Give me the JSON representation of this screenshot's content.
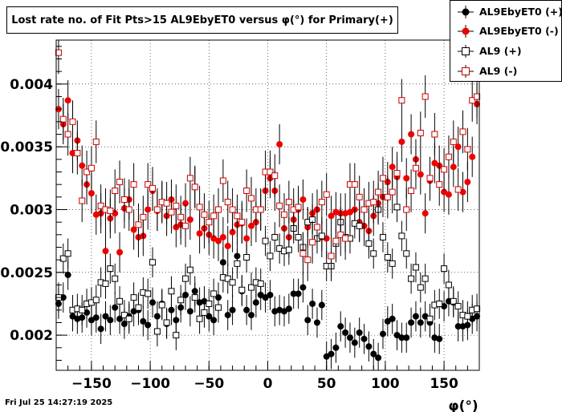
{
  "chart_data": {
    "type": "scatter",
    "title": "Lost rate no. of Fit Pts>15 AL9EbyET0 versus φ(°) for Primary(+)",
    "xlabel": "φ(°)",
    "ylabel": "",
    "xlim": [
      -180,
      180
    ],
    "ylim": [
      0.00172,
      0.00435
    ],
    "grid": true,
    "legend_position": "top-right",
    "x_ticks": [
      -150,
      -100,
      -50,
      0,
      50,
      100,
      150
    ],
    "x_tick_labels": [
      "−150",
      "−100",
      "−50",
      "0",
      "50",
      "100",
      "150"
    ],
    "y_ticks": [
      0.002,
      0.0025,
      0.003,
      0.0035,
      0.004
    ],
    "y_tick_labels": [
      "0.002",
      "0.0025",
      "0.003",
      "0.0035",
      "0.004"
    ],
    "x": [
      -178,
      -174,
      -170,
      -166,
      -162,
      -158,
      -154,
      -150,
      -146,
      -142,
      -138,
      -134,
      -130,
      -126,
      -122,
      -118,
      -114,
      -110,
      -106,
      -102,
      -98,
      -94,
      -90,
      -86,
      -82,
      -78,
      -74,
      -70,
      -66,
      -62,
      -58,
      -54,
      -50,
      -46,
      -42,
      -38,
      -34,
      -30,
      -26,
      -22,
      -18,
      -14,
      -10,
      -6,
      -2,
      2,
      6,
      10,
      14,
      18,
      22,
      26,
      30,
      34,
      38,
      42,
      46,
      50,
      54,
      58,
      62,
      66,
      70,
      74,
      78,
      82,
      86,
      90,
      94,
      98,
      102,
      106,
      110,
      114,
      118,
      122,
      126,
      130,
      134,
      138,
      142,
      146,
      150,
      154,
      158,
      162,
      166,
      170,
      174,
      178
    ],
    "series": [
      {
        "name": "AL9EbyET0 (+)",
        "marker": "filled-circle",
        "color": "#000000",
        "values": [
          0.00225,
          0.0023,
          0.00248,
          0.00215,
          0.00213,
          0.00214,
          0.00218,
          0.00212,
          0.00214,
          0.00205,
          0.00215,
          0.00212,
          0.00222,
          0.00213,
          0.00209,
          0.00215,
          0.00219,
          0.0022,
          0.00211,
          0.00208,
          0.00226,
          0.00215,
          0.00225,
          0.00209,
          0.0022,
          0.00212,
          0.00222,
          0.00232,
          0.00219,
          0.00235,
          0.00226,
          0.00227,
          0.00215,
          0.00212,
          0.0023,
          0.00258,
          0.00216,
          0.0022,
          0.00263,
          0.00235,
          0.0022,
          0.00216,
          0.00226,
          0.00232,
          0.0023,
          0.00232,
          0.00219,
          0.0022,
          0.00219,
          0.00221,
          0.00233,
          0.00233,
          0.00238,
          0.00212,
          0.00225,
          0.0021,
          0.00224,
          0.00183,
          0.00185,
          0.0019,
          0.00207,
          0.00202,
          0.00198,
          0.00194,
          0.00202,
          0.00197,
          0.00191,
          0.00185,
          0.00182,
          0.00201,
          0.00211,
          0.00213,
          0.002,
          0.00198,
          0.00198,
          0.0021,
          0.00215,
          0.0021,
          0.00215,
          0.0021,
          0.00198,
          0.00197,
          0.00223,
          0.00227,
          0.00226,
          0.00207,
          0.00207,
          0.00208,
          0.00213,
          0.00215
        ],
        "errors": [
          0.00012,
          0.00012,
          0.00012,
          0.00012,
          0.00012,
          0.00012,
          0.00012,
          0.00012,
          0.00012,
          0.00012,
          0.00012,
          0.00012,
          0.00012,
          0.00012,
          0.00012,
          0.00012,
          0.00012,
          0.00012,
          0.00012,
          0.00012,
          0.00012,
          0.00012,
          0.00012,
          0.00012,
          0.00012,
          0.00012,
          0.00012,
          0.00012,
          0.00012,
          0.00012,
          0.00012,
          0.00012,
          0.00012,
          0.00012,
          0.00012,
          0.00012,
          0.00012,
          0.00012,
          0.00012,
          0.00012,
          0.00012,
          0.00012,
          0.00012,
          0.00012,
          0.00012,
          0.00012,
          0.00012,
          0.00012,
          0.00012,
          0.00012,
          0.00012,
          0.00012,
          0.00012,
          0.00012,
          0.00012,
          0.00012,
          0.00012,
          0.00012,
          0.00012,
          0.00012,
          0.00012,
          0.00012,
          0.00012,
          0.00012,
          0.00012,
          0.00012,
          0.00012,
          0.00012,
          0.00012,
          0.00012,
          0.00012,
          0.00012,
          0.00012,
          0.00012,
          0.00012,
          0.00012,
          0.00012,
          0.00012,
          0.00012,
          0.00012,
          0.00012,
          0.00012,
          0.00012,
          0.00012,
          0.00012,
          0.00012,
          0.00012,
          0.00012,
          0.00012,
          0.00012
        ]
      },
      {
        "name": "AL9EbyET0 (-)",
        "marker": "filled-circle",
        "color": "#ee0000",
        "values": [
          0.0038,
          0.00368,
          0.00387,
          0.00345,
          0.00355,
          0.00335,
          0.0032,
          0.00313,
          0.00296,
          0.00297,
          0.00267,
          0.00293,
          0.00297,
          0.00266,
          0.00301,
          0.00308,
          0.00284,
          0.00278,
          0.00279,
          0.003,
          0.00315,
          0.00299,
          0.00306,
          0.00295,
          0.00308,
          0.00286,
          0.00288,
          0.00305,
          0.00292,
          0.00318,
          0.00281,
          0.00285,
          0.0028,
          0.00277,
          0.00275,
          0.00278,
          0.00271,
          0.00282,
          0.00288,
          0.00289,
          0.00277,
          0.00287,
          0.0029,
          0.003,
          0.00315,
          0.00325,
          0.00315,
          0.00352,
          0.00285,
          0.00278,
          0.00292,
          0.003,
          0.00308,
          0.00286,
          0.00297,
          0.003,
          0.00278,
          0.00277,
          0.00295,
          0.00298,
          0.00297,
          0.00297,
          0.00298,
          0.003,
          0.0029,
          0.00287,
          0.00283,
          0.00295,
          0.00305,
          0.0031,
          0.00322,
          0.00334,
          0.00326,
          0.00354,
          0.00325,
          0.0036,
          0.0034,
          0.00328,
          0.00297,
          0.00323,
          0.00337,
          0.00335,
          0.00314,
          0.00312,
          0.00334,
          0.0035,
          0.00314,
          0.00322,
          0.00342,
          0.00384
        ],
        "errors": [
          0.00016,
          0.00016,
          0.00016,
          0.00016,
          0.00016,
          0.00016,
          0.00016,
          0.00016,
          0.00016,
          0.00016,
          0.00016,
          0.00016,
          0.00016,
          0.00016,
          0.00016,
          0.00016,
          0.00016,
          0.00016,
          0.00016,
          0.00016,
          0.00016,
          0.00016,
          0.00016,
          0.00016,
          0.00016,
          0.00016,
          0.00016,
          0.00016,
          0.00016,
          0.00016,
          0.00016,
          0.00016,
          0.00016,
          0.00016,
          0.00016,
          0.00016,
          0.00016,
          0.00016,
          0.00016,
          0.00016,
          0.00016,
          0.00016,
          0.00016,
          0.00016,
          0.00016,
          0.00016,
          0.00016,
          0.00016,
          0.00016,
          0.00016,
          0.00016,
          0.00016,
          0.00016,
          0.00016,
          0.00016,
          0.00016,
          0.00016,
          0.00016,
          0.00016,
          0.00016,
          0.00016,
          0.00016,
          0.00016,
          0.00016,
          0.00016,
          0.00016,
          0.00016,
          0.00016,
          0.00016,
          0.00016,
          0.00016,
          0.00016,
          0.00016,
          0.00016,
          0.00016,
          0.00016,
          0.00016,
          0.00016,
          0.00016,
          0.00016,
          0.00016,
          0.00016,
          0.00016,
          0.00016,
          0.00016,
          0.00016,
          0.00016,
          0.00016,
          0.00016,
          0.00016
        ]
      },
      {
        "name": "AL9 (+)",
        "marker": "open-square",
        "color": "#000000",
        "values": [
          0.0023,
          0.00261,
          0.00265,
          0.0022,
          0.00221,
          0.0022,
          0.00225,
          0.00226,
          0.00228,
          0.00242,
          0.00241,
          0.00253,
          0.00245,
          0.00227,
          0.00216,
          0.00213,
          0.0023,
          0.00222,
          0.00234,
          0.00233,
          0.00258,
          0.00203,
          0.00224,
          0.0021,
          0.00235,
          0.002,
          0.00228,
          0.00245,
          0.00252,
          0.0023,
          0.00213,
          0.00218,
          0.00225,
          0.00233,
          0.00222,
          0.00246,
          0.00245,
          0.00242,
          0.00257,
          0.00236,
          0.00262,
          0.00238,
          0.00242,
          0.00241,
          0.00275,
          0.00263,
          0.00278,
          0.00269,
          0.00267,
          0.00268,
          0.00285,
          0.00278,
          0.0027,
          0.0029,
          0.00292,
          0.00277,
          0.00279,
          0.00255,
          0.00255,
          0.00273,
          0.0029,
          0.00278,
          0.00277,
          0.00289,
          0.00287,
          0.003,
          0.00273,
          0.00265,
          0.003,
          0.00278,
          0.00262,
          0.00257,
          0.00302,
          0.00279,
          0.00265,
          0.00245,
          0.00254,
          0.00238,
          0.00245,
          0.00213,
          0.00224,
          0.00225,
          0.00253,
          0.0024,
          0.00227,
          0.00223,
          0.00216,
          0.00215,
          0.0022,
          0.00221
        ],
        "errors": [
          0.00012,
          0.00012,
          0.00012,
          0.00012,
          0.00012,
          0.00012,
          0.00012,
          0.00012,
          0.00012,
          0.00012,
          0.00012,
          0.00012,
          0.00012,
          0.00012,
          0.00012,
          0.00012,
          0.00012,
          0.00012,
          0.00012,
          0.00012,
          0.00012,
          0.00012,
          0.00012,
          0.00012,
          0.00012,
          0.00012,
          0.00012,
          0.00012,
          0.00012,
          0.00012,
          0.00012,
          0.00012,
          0.00012,
          0.00012,
          0.00012,
          0.00012,
          0.00012,
          0.00012,
          0.00012,
          0.00012,
          0.00012,
          0.00012,
          0.00012,
          0.00012,
          0.00012,
          0.00012,
          0.00012,
          0.00012,
          0.00012,
          0.00012,
          0.00012,
          0.00012,
          0.00012,
          0.00012,
          0.00012,
          0.00012,
          0.00012,
          0.00012,
          0.00012,
          0.00012,
          0.00012,
          0.00012,
          0.00012,
          0.00012,
          0.00012,
          0.00012,
          0.00012,
          0.00012,
          0.00012,
          0.00012,
          0.00012,
          0.00012,
          0.00012,
          0.00012,
          0.00012,
          0.00012,
          0.00012,
          0.00012,
          0.00012,
          0.00012,
          0.00012,
          0.00012,
          0.00012,
          0.00012,
          0.00012,
          0.00012,
          0.00012,
          0.00012,
          0.00012,
          0.00012
        ]
      },
      {
        "name": "AL9 (-)",
        "marker": "open-square",
        "color": "#cc0000",
        "values": [
          0.00425,
          0.00372,
          0.0036,
          0.0037,
          0.00345,
          0.00307,
          0.0033,
          0.00333,
          0.00354,
          0.00303,
          0.003,
          0.00299,
          0.00315,
          0.00322,
          0.00308,
          0.003,
          0.0032,
          0.00288,
          0.00294,
          0.0032,
          0.00317,
          0.003,
          0.00306,
          0.00305,
          0.00298,
          0.00303,
          0.00294,
          0.00287,
          0.00325,
          0.00318,
          0.00302,
          0.00296,
          0.0029,
          0.00295,
          0.003,
          0.00323,
          0.00306,
          0.003,
          0.00295,
          0.0029,
          0.00315,
          0.00309,
          0.003,
          0.003,
          0.0033,
          0.0033,
          0.00327,
          0.00303,
          0.00296,
          0.00306,
          0.003,
          0.00302,
          0.00265,
          0.0026,
          0.00274,
          0.00286,
          0.00306,
          0.00312,
          0.00263,
          0.00275,
          0.0028,
          0.00277,
          0.0032,
          0.0032,
          0.0031,
          0.003,
          0.00305,
          0.00306,
          0.00314,
          0.00325,
          0.0031,
          0.00314,
          0.00329,
          0.00387,
          0.003,
          0.00315,
          0.00333,
          0.00361,
          0.0039,
          0.00325,
          0.0036,
          0.0032,
          0.00332,
          0.00342,
          0.00354,
          0.00316,
          0.00362,
          0.00348,
          0.00387,
          0.0039
        ],
        "errors": [
          0.00017,
          0.00017,
          0.00017,
          0.00017,
          0.00017,
          0.00017,
          0.00017,
          0.00017,
          0.00017,
          0.00017,
          0.00017,
          0.00017,
          0.00017,
          0.00017,
          0.00017,
          0.00017,
          0.00017,
          0.00017,
          0.00017,
          0.00017,
          0.00017,
          0.00017,
          0.00017,
          0.00017,
          0.00017,
          0.00017,
          0.00017,
          0.00017,
          0.00017,
          0.00017,
          0.00017,
          0.00017,
          0.00017,
          0.00017,
          0.00017,
          0.00017,
          0.00017,
          0.00017,
          0.00017,
          0.00017,
          0.00017,
          0.00017,
          0.00017,
          0.00017,
          0.00017,
          0.00017,
          0.00017,
          0.00017,
          0.00017,
          0.00017,
          0.00017,
          0.00017,
          0.00017,
          0.00017,
          0.00017,
          0.00017,
          0.00017,
          0.00017,
          0.00017,
          0.00017,
          0.00017,
          0.00017,
          0.00017,
          0.00017,
          0.00017,
          0.00017,
          0.00017,
          0.00017,
          0.00017,
          0.00017,
          0.00017,
          0.00017,
          0.00017,
          0.00017,
          0.00017,
          0.00017,
          0.00017,
          0.00017,
          0.00017,
          0.00017,
          0.00017,
          0.00017,
          0.00017,
          0.00017,
          0.00017,
          0.00017,
          0.00017,
          0.00017,
          0.00017,
          0.00017
        ]
      }
    ]
  },
  "footer": {
    "timestamp": "Fri Jul 25 14:27:19 2025"
  }
}
